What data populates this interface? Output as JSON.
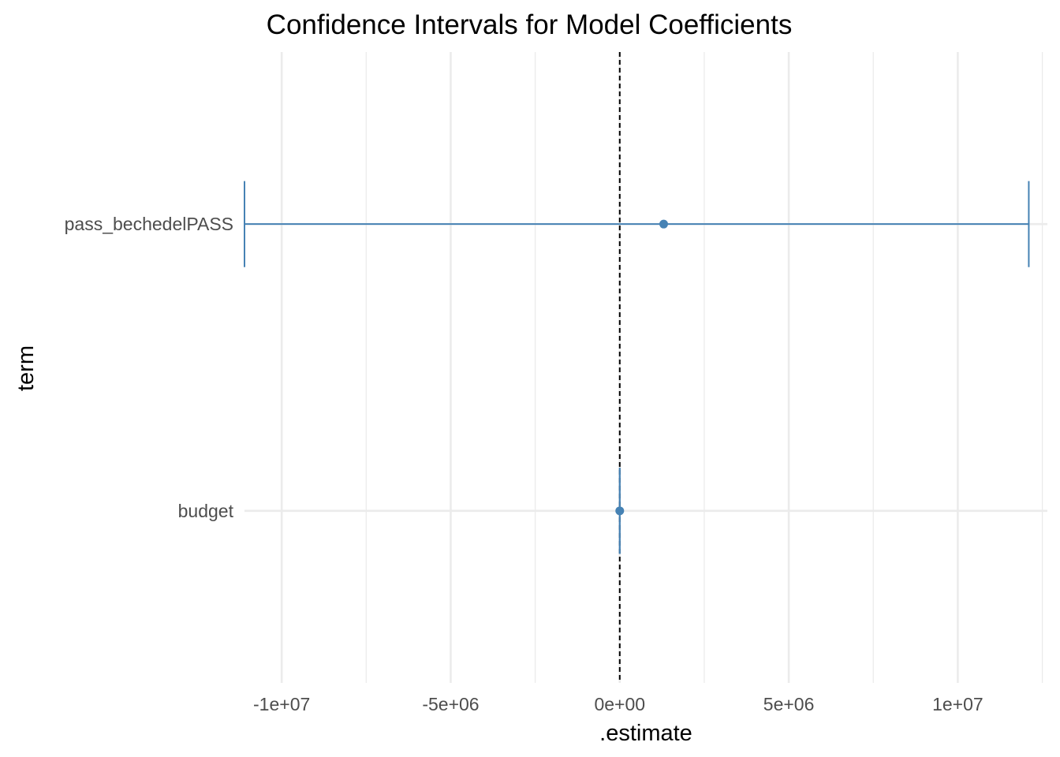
{
  "chart_data": {
    "type": "errorbar",
    "title": "Confidence Intervals for Model Coefficients",
    "xlabel": ".estimate",
    "ylabel": "term",
    "xlim": [
      -11100000,
      12650000
    ],
    "x_ticks": [
      -10000000,
      -5000000,
      0,
      5000000,
      10000000
    ],
    "x_tick_labels": [
      "-1e+07",
      "-5e+06",
      "0e+00",
      "5e+06",
      "1e+07"
    ],
    "categories": [
      "pass_bechedelPASS",
      "budget"
    ],
    "series": [
      {
        "values": [
          {
            "term": "pass_bechedelPASS",
            "estimate": 1300000,
            "conf_low": -11100000,
            "conf_high": 12100000
          },
          {
            "term": "budget",
            "estimate": 0.5,
            "conf_low": 0.2,
            "conf_high": 0.8
          }
        ]
      }
    ],
    "reference_line": {
      "x": 0,
      "style": "dashed",
      "color": "#000000"
    },
    "grid": true,
    "legend": "none",
    "point_color": "#4682b4",
    "errorbar_color": "#4682b4",
    "grid_color": "#ebebeb"
  }
}
